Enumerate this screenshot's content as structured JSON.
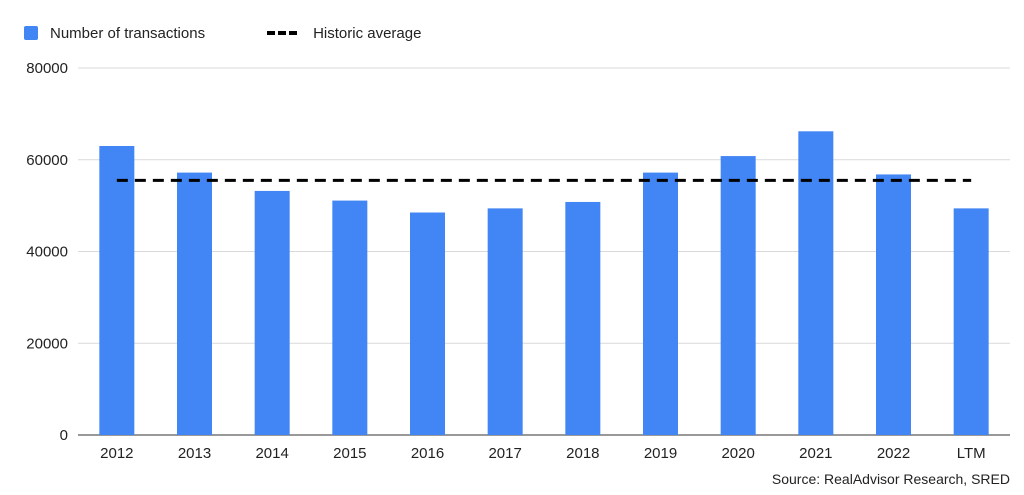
{
  "chart_data": {
    "type": "bar",
    "categories": [
      "2012",
      "2013",
      "2014",
      "2015",
      "2016",
      "2017",
      "2018",
      "2019",
      "2020",
      "2021",
      "2022",
      "LTM"
    ],
    "series": [
      {
        "name": "Number of transactions",
        "color": "#4285f4",
        "values": [
          63000,
          57200,
          53200,
          51100,
          48500,
          49400,
          50800,
          57200,
          60800,
          66200,
          56800,
          49400
        ]
      }
    ],
    "reference_line": {
      "name": "Historic average",
      "value": 55500,
      "style": "dashed",
      "color": "#000000"
    },
    "yticks": [
      0,
      20000,
      40000,
      60000,
      80000
    ],
    "ylim": [
      0,
      80000
    ],
    "title": "",
    "xlabel": "",
    "ylabel": "",
    "grid": true,
    "legend_position": "top-left"
  },
  "source": "Source: RealAdvisor Research, SRED"
}
